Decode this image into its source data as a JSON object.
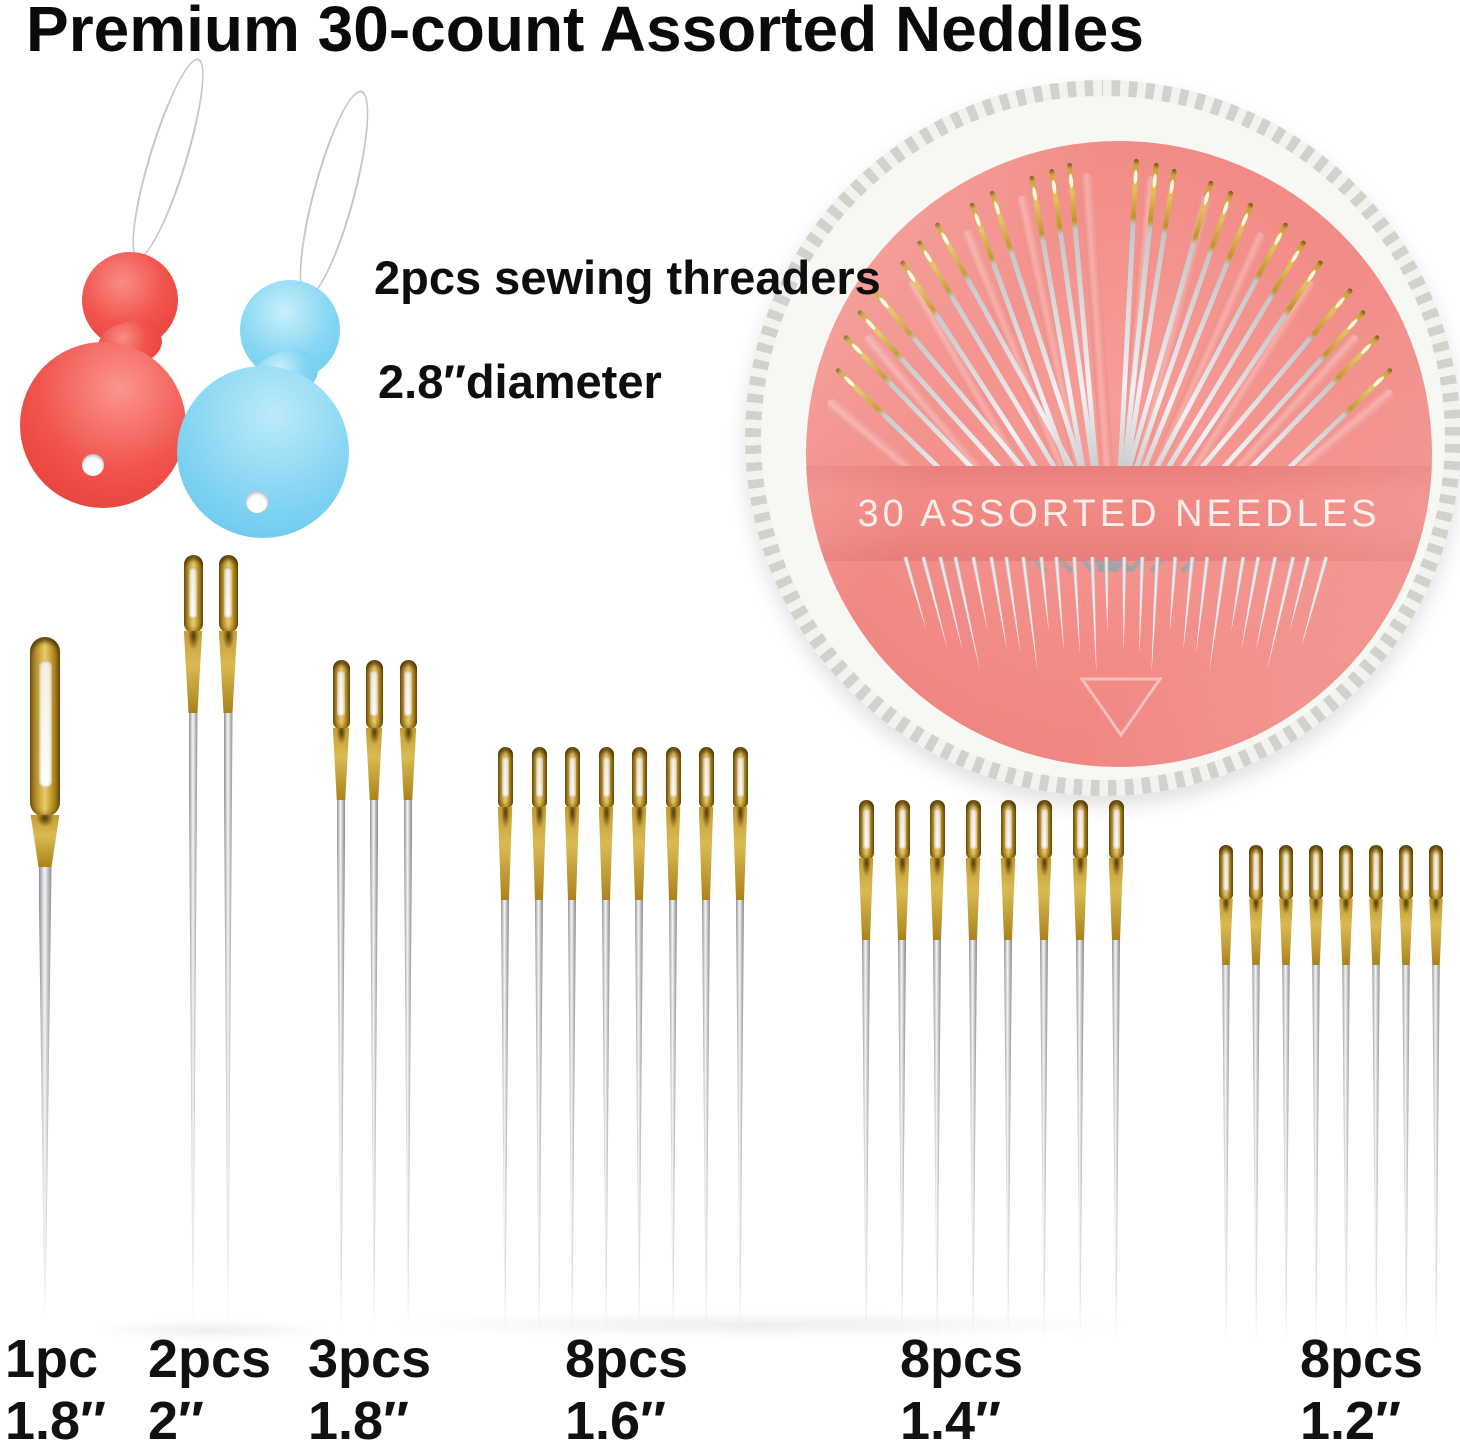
{
  "title": "Premium 30-count Assorted Neddles",
  "notes": {
    "threaders": "2pcs sewing threaders",
    "diameter": "2.8″diameter"
  },
  "case": {
    "label": "30 ASSORTED NEEDLES",
    "needle_count": 30,
    "colors": {
      "shell_pink": "#f28b86",
      "band_pink": "#ee8682",
      "rim_white": "#f2f2ee"
    }
  },
  "threaders": [
    {
      "name": "red threader",
      "color": "#f1544e"
    },
    {
      "name": "blue threader",
      "color": "#84d5f2"
    }
  ],
  "groups": [
    {
      "count": 1,
      "count_label": "1pc",
      "size_label": "1.8″"
    },
    {
      "count": 2,
      "count_label": "2pcs",
      "size_label": "2″"
    },
    {
      "count": 3,
      "count_label": "3pcs",
      "size_label": "1.8″"
    },
    {
      "count": 8,
      "count_label": "8pcs",
      "size_label": "1.6″"
    },
    {
      "count": 8,
      "count_label": "8pcs",
      "size_label": "1.4″"
    },
    {
      "count": 8,
      "count_label": "8pcs",
      "size_label": "1.2″"
    }
  ],
  "colors": {
    "gold": "#c9a233",
    "silver": "#d9d9dc",
    "text": "#111111"
  }
}
